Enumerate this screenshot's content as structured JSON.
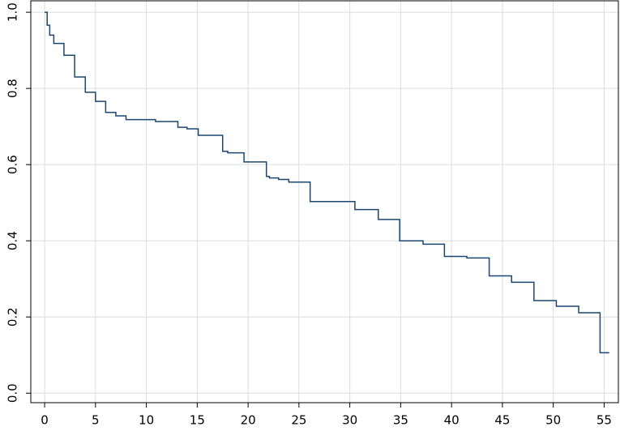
{
  "chart_data": {
    "type": "step",
    "x": [
      0,
      0.25,
      0.5,
      0.9,
      1.9,
      2.95,
      4,
      5,
      6,
      7,
      8,
      10.9,
      13.1,
      14,
      15.1,
      17.5,
      18,
      19.6,
      21.8,
      22.1,
      23,
      24,
      26.1,
      30.5,
      32.8,
      34.9,
      37.2,
      39.3,
      41.5,
      43.7,
      45.9,
      48.1,
      50.3,
      52.5,
      54.6,
      55.5
    ],
    "series": [
      {
        "color": "#1a476f",
        "values": [
          1.0,
          0.966,
          0.94,
          0.918,
          0.887,
          0.83,
          0.79,
          0.766,
          0.737,
          0.728,
          0.718,
          0.713,
          0.698,
          0.694,
          0.677,
          0.635,
          0.631,
          0.607,
          0.569,
          0.565,
          0.561,
          0.554,
          0.503,
          0.482,
          0.456,
          0.4,
          0.391,
          0.359,
          0.355,
          0.308,
          0.291,
          0.243,
          0.228,
          0.211,
          0.106,
          0.106
        ]
      }
    ],
    "xlim": [
      -1.36,
      56.4
    ],
    "ylim": [
      -0.025,
      1.03
    ],
    "xticks": [
      0,
      5,
      10,
      15,
      20,
      25,
      30,
      35,
      40,
      45,
      50,
      55
    ],
    "yticks": [
      {
        "value": 0,
        "label": "0.0"
      },
      0.2,
      0.4,
      0.6,
      0.8,
      {
        "value": 1,
        "label": "1.0"
      }
    ],
    "grid": true
  }
}
